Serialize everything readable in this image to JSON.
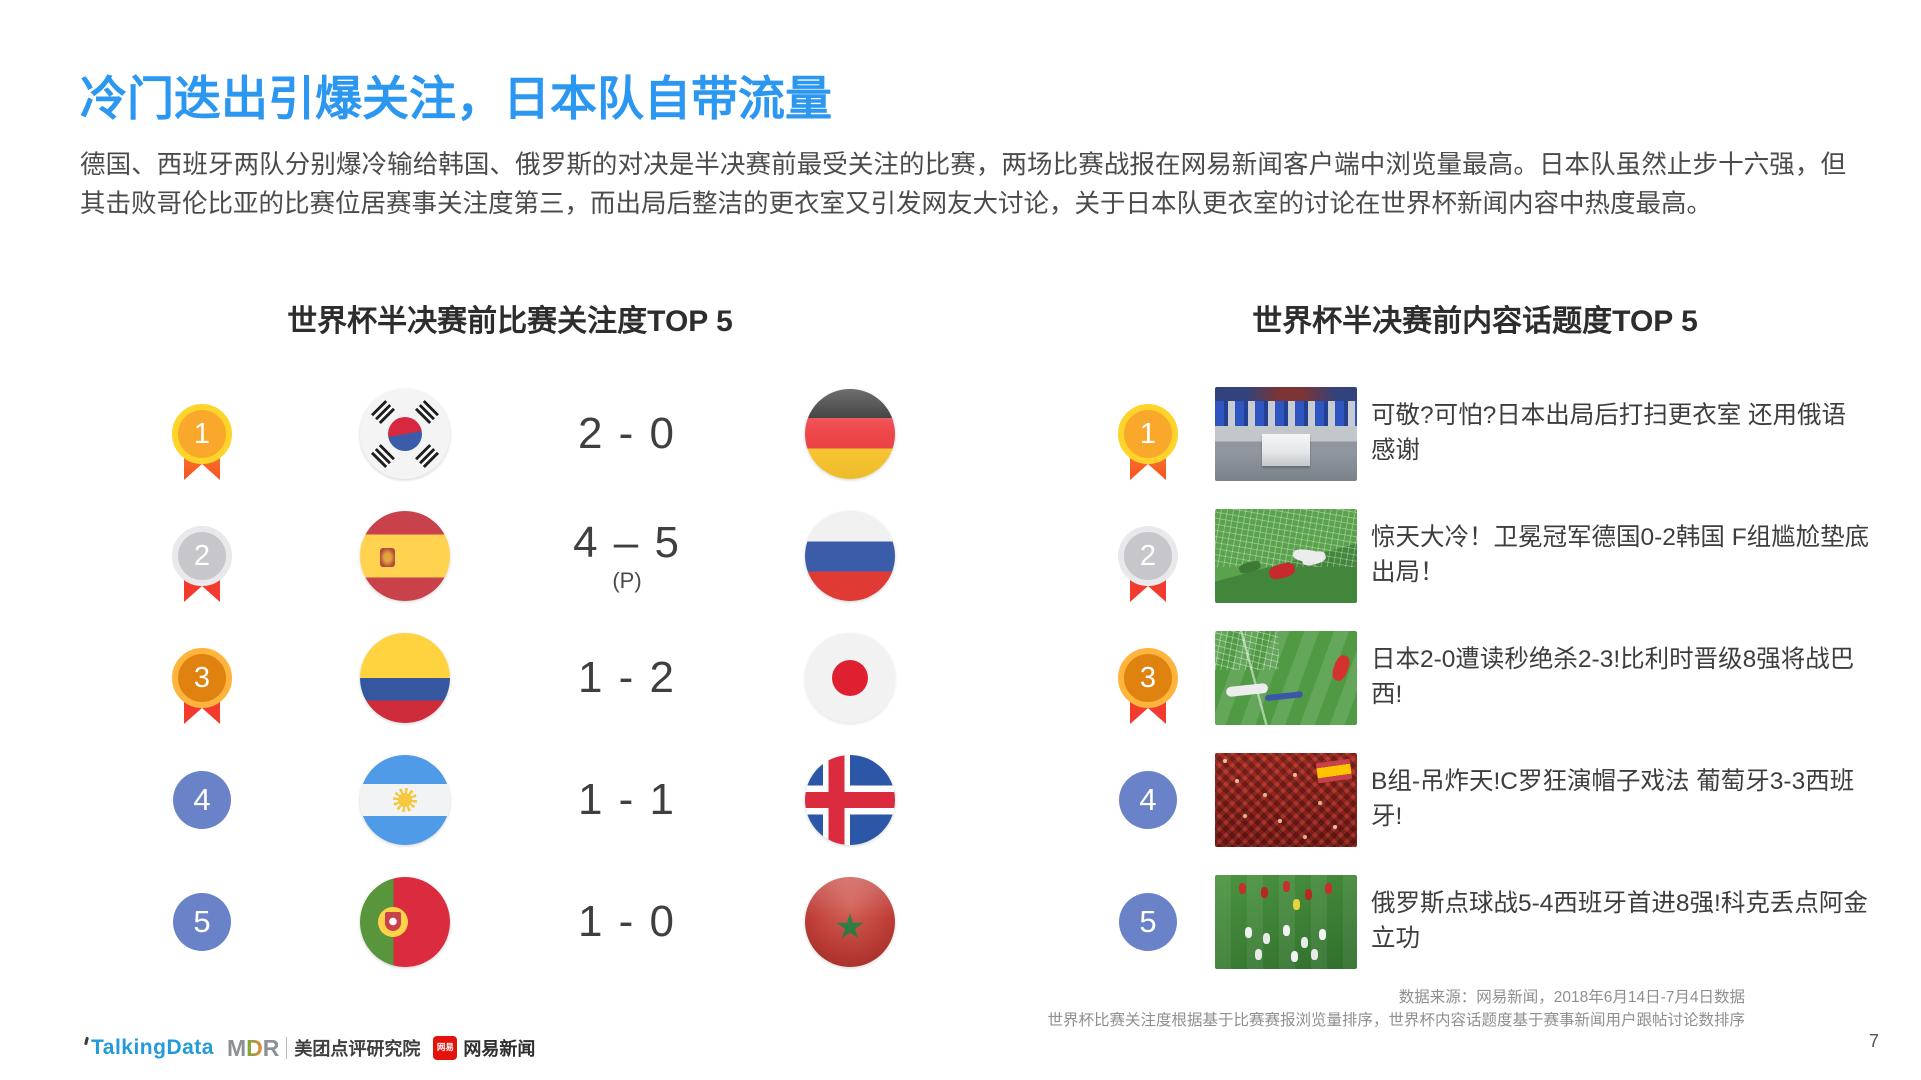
{
  "slide": {
    "title": "冷门迭出引爆关注，日本队自带流量",
    "body": "德国、西班牙两队分别爆冷输给韩国、俄罗斯的对决是半决赛前最受关注的比赛，两场比赛战报在网易新闻客户端中浏览量最高。日本队虽然止步十六强，但其击败哥伦比亚的比赛位居赛事关注度第三，而出局后整洁的更衣室又引发网友大讨论，关于日本队更衣室的讨论在世界杯新闻内容中热度最高。",
    "page_number": "7"
  },
  "left_panel": {
    "heading": "世界杯半决赛前比赛关注度TOP 5",
    "rows": [
      {
        "rank": "1",
        "medal": "gold",
        "team1": "south-korea",
        "score": "2 - 0",
        "score_note": "",
        "team2": "germany"
      },
      {
        "rank": "2",
        "medal": "silver",
        "team1": "spain",
        "score": "4 – 5",
        "score_note": "(P)",
        "team2": "russia"
      },
      {
        "rank": "3",
        "medal": "bronze",
        "team1": "colombia",
        "score": "1 - 2",
        "score_note": "",
        "team2": "japan"
      },
      {
        "rank": "4",
        "medal": "blue",
        "team1": "argentina",
        "score": "1 - 1",
        "score_note": "",
        "team2": "iceland"
      },
      {
        "rank": "5",
        "medal": "blue",
        "team1": "portugal",
        "score": "1 - 0",
        "score_note": "",
        "team2": "morocco"
      }
    ]
  },
  "right_panel": {
    "heading": "世界杯半决赛前内容话题度TOP 5",
    "rows": [
      {
        "rank": "1",
        "medal": "gold",
        "thumbnail": "locker-room",
        "headline": "可敬?可怕?日本出局后打扫更衣室 还用俄语感谢"
      },
      {
        "rank": "2",
        "medal": "silver",
        "thumbnail": "germany-korea-goal",
        "headline": "惊天大冷！卫冕冠军德国0-2韩国 F组尴尬垫底出局！"
      },
      {
        "rank": "3",
        "medal": "bronze",
        "thumbnail": "japan-belgium-loss",
        "headline": "日本2-0遭读秒绝杀2-3!比利时晋级8强将战巴西!"
      },
      {
        "rank": "4",
        "medal": "blue",
        "thumbnail": "portugal-spain-fans",
        "headline": "B组-吊炸天!C罗狂演帽子戏法 葡萄牙3-3西班牙!"
      },
      {
        "rank": "5",
        "medal": "blue",
        "thumbnail": "russia-spain-celebration",
        "headline": "俄罗斯点球战5-4西班牙首进8强!科克丢点阿金立功"
      }
    ]
  },
  "footer": {
    "source_line1": "数据来源：网易新闻，2018年6月14日-7月4日数据",
    "source_line2": "世界杯比赛关注度根据基于比赛赛报浏览量排序，世界杯内容话题度基于赛事新闻用户跟帖讨论数排序",
    "logos": {
      "talkingdata": "TalkingData",
      "mdr_m": "M",
      "mdr_d": "D",
      "mdr_r": "R",
      "meituan": "美团点评研究院",
      "netease_icon_text": "网易",
      "netease": "网易新闻"
    }
  },
  "colors": {
    "title_blue": "#2b97f1",
    "medal_gold": "#f9a82b",
    "medal_silver": "#c7c7cb",
    "medal_bronze": "#e0820f",
    "rank_blue": "#6a82c8",
    "ribbon_red": "#f23b2e"
  }
}
